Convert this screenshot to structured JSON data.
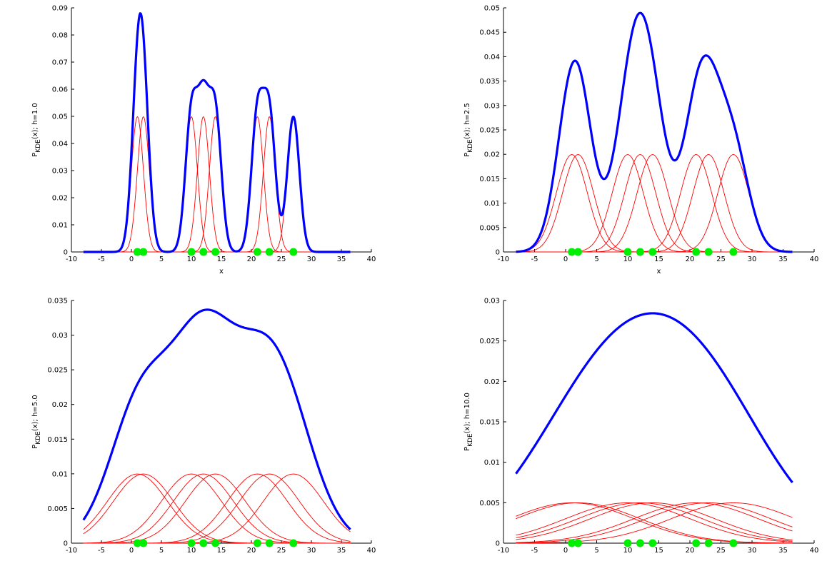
{
  "chart_data": [
    {
      "type": "line",
      "xlabel": "x",
      "ylabel": "P_KDE(x); h=1.0",
      "ylabel_main": "P",
      "ylabel_sub": "KDE",
      "ylabel_rest": "(x); h=1.0",
      "bandwidth": 1.0,
      "xlim": [
        -10,
        40
      ],
      "ylim": [
        0,
        0.09
      ],
      "xticks": [
        "-10",
        "-5",
        "0",
        "5",
        "10",
        "15",
        "20",
        "25",
        "30",
        "35",
        "40"
      ],
      "yticks": [
        "0",
        "0.01",
        "0.02",
        "0.03",
        "0.04",
        "0.05",
        "0.06",
        "0.07",
        "0.08",
        "0.09"
      ],
      "data_points": [
        1,
        2,
        10,
        12,
        14,
        21,
        23,
        27
      ],
      "series": [
        {
          "role": "kde-sum",
          "color": "#0000ff"
        },
        {
          "role": "kernels",
          "color": "#ff0000"
        },
        {
          "role": "samples",
          "color": "#00ee00"
        }
      ],
      "grid": false
    },
    {
      "type": "line",
      "xlabel": "x",
      "ylabel": "P_KDE(x); h=2.5",
      "ylabel_main": "P",
      "ylabel_sub": "KDE",
      "ylabel_rest": "(x); h=2.5",
      "bandwidth": 2.5,
      "xlim": [
        -10,
        40
      ],
      "ylim": [
        0,
        0.05
      ],
      "xticks": [
        "-10",
        "-5",
        "0",
        "5",
        "10",
        "15",
        "20",
        "25",
        "30",
        "35",
        "40"
      ],
      "yticks": [
        "0",
        "0.005",
        "0.01",
        "0.015",
        "0.02",
        "0.025",
        "0.03",
        "0.035",
        "0.04",
        "0.045",
        "0.05"
      ],
      "data_points": [
        1,
        2,
        10,
        12,
        14,
        21,
        23,
        27
      ],
      "series": [
        {
          "role": "kde-sum",
          "color": "#0000ff"
        },
        {
          "role": "kernels",
          "color": "#ff0000"
        },
        {
          "role": "samples",
          "color": "#00ee00"
        }
      ],
      "grid": false
    },
    {
      "type": "line",
      "xlabel": "",
      "ylabel": "P_KDE(x); h=5.0",
      "ylabel_main": "P",
      "ylabel_sub": "KDE",
      "ylabel_rest": "(x); h=5.0",
      "bandwidth": 5.0,
      "xlim": [
        -10,
        40
      ],
      "ylim": [
        0,
        0.035
      ],
      "xticks": [
        "-10",
        "-5",
        "0",
        "5",
        "10",
        "15",
        "20",
        "25",
        "30",
        "35",
        "40"
      ],
      "yticks": [
        "0",
        "0.005",
        "0.01",
        "0.015",
        "0.02",
        "0.025",
        "0.03",
        "0.035"
      ],
      "data_points": [
        1,
        2,
        10,
        12,
        14,
        21,
        23,
        27
      ],
      "series": [
        {
          "role": "kde-sum",
          "color": "#0000ff"
        },
        {
          "role": "kernels",
          "color": "#ff0000"
        },
        {
          "role": "samples",
          "color": "#00ee00"
        }
      ],
      "grid": false
    },
    {
      "type": "line",
      "xlabel": "",
      "ylabel": "P_KDE(x); h=10.0",
      "ylabel_main": "P",
      "ylabel_sub": "KDE",
      "ylabel_rest": "(x); h=10.0",
      "bandwidth": 10.0,
      "xlim": [
        -10,
        40
      ],
      "ylim": [
        0,
        0.03
      ],
      "xticks": [
        "-10",
        "-5",
        "0",
        "5",
        "10",
        "15",
        "20",
        "25",
        "30",
        "35",
        "40"
      ],
      "yticks": [
        "0",
        "0.005",
        "0.01",
        "0.015",
        "0.02",
        "0.025",
        "0.03"
      ],
      "data_points": [
        1,
        2,
        10,
        12,
        14,
        21,
        23,
        27
      ],
      "series": [
        {
          "role": "kde-sum",
          "color": "#0000ff"
        },
        {
          "role": "kernels",
          "color": "#ff0000"
        },
        {
          "role": "samples",
          "color": "#00ee00"
        }
      ],
      "grid": false
    }
  ]
}
